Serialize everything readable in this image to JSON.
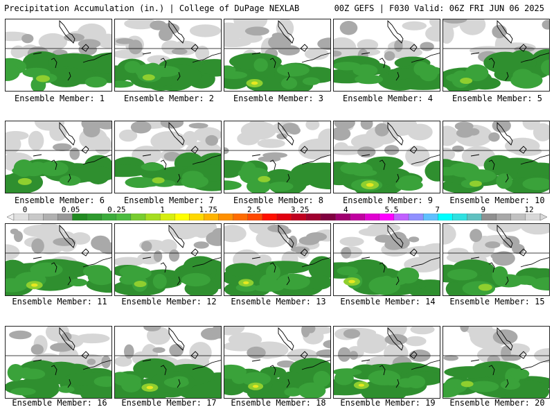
{
  "header": {
    "title_left": "Precipitation Accumulation (in.) | College of DuPage NEXLAB",
    "title_right": "00Z GEFS | F030 Valid: 06Z FRI JUN 06 2025"
  },
  "colorbar": {
    "labels": [
      "0",
      "0.05",
      "0.25",
      "1",
      "1.75",
      "2.5",
      "3.25",
      "4",
      "5.5",
      "7",
      "9",
      "12"
    ],
    "colors": [
      "#e0e0e0",
      "#c8c8c8",
      "#b0b0b0",
      "#989898",
      "#228b22",
      "#2e9a2e",
      "#3cab3c",
      "#4cbb40",
      "#78cc30",
      "#a6dd20",
      "#d6ee10",
      "#ffff00",
      "#ffd800",
      "#ffb400",
      "#ff9000",
      "#ff6c00",
      "#ff4800",
      "#ff1000",
      "#e00010",
      "#c00020",
      "#a00030",
      "#800040",
      "#a00070",
      "#c000a0",
      "#e000d0",
      "#ff00ff",
      "#c060ff",
      "#9090ff",
      "#60c0ff",
      "#00ffff",
      "#30e0e0",
      "#60c0c0",
      "#909090",
      "#a8a8a8",
      "#c0c0c0",
      "#d8d8d8"
    ]
  },
  "members": [
    {
      "label": "Ensemble Member: 1",
      "intensity": 0.6
    },
    {
      "label": "Ensemble Member: 2",
      "intensity": 0.5
    },
    {
      "label": "Ensemble Member: 3",
      "intensity": 0.8
    },
    {
      "label": "Ensemble Member: 4",
      "intensity": 0.3
    },
    {
      "label": "Ensemble Member: 5",
      "intensity": 0.5
    },
    {
      "label": "Ensemble Member: 6",
      "intensity": 0.6
    },
    {
      "label": "Ensemble Member: 7",
      "intensity": 0.5
    },
    {
      "label": "Ensemble Member: 8",
      "intensity": 0.5
    },
    {
      "label": "Ensemble Member: 9",
      "intensity": 0.9
    },
    {
      "label": "Ensemble Member: 10",
      "intensity": 0.5
    },
    {
      "label": "Ensemble Member: 11",
      "intensity": 0.8
    },
    {
      "label": "Ensemble Member: 12",
      "intensity": 0.5
    },
    {
      "label": "Ensemble Member: 13",
      "intensity": 0.7
    },
    {
      "label": "Ensemble Member: 14",
      "intensity": 0.8
    },
    {
      "label": "Ensemble Member: 15",
      "intensity": 0.6
    },
    {
      "label": "Ensemble Member: 16",
      "intensity": 0.4
    },
    {
      "label": "Ensemble Member: 17",
      "intensity": 0.8
    },
    {
      "label": "Ensemble Member: 18",
      "intensity": 0.7
    },
    {
      "label": "Ensemble Member: 19",
      "intensity": 0.7
    },
    {
      "label": "Ensemble Member: 20",
      "intensity": 0.5
    }
  ]
}
